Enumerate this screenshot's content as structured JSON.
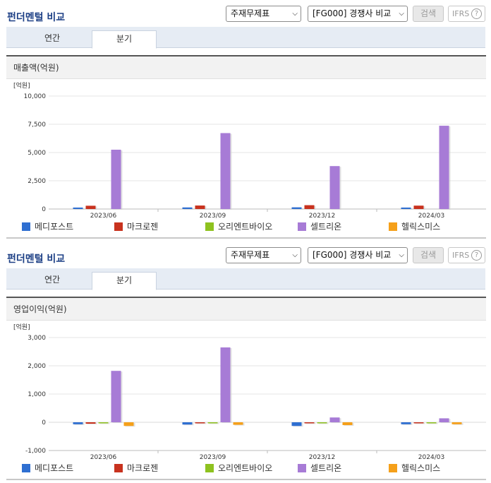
{
  "sections": [
    {
      "title": "펀더멘털 비교",
      "statement_select": "주재무제표",
      "compare_select": "[FG000] 경쟁사 비교",
      "search_label": "검색",
      "ifrs_label": "IFRS",
      "help_glyph": "?",
      "tabs": [
        {
          "label": "연간",
          "active": false
        },
        {
          "label": "분기",
          "active": true
        }
      ]
    },
    {
      "title": "펀더멘털 비교",
      "statement_select": "주재무제표",
      "compare_select": "[FG000] 경쟁사 비교",
      "search_label": "검색",
      "ifrs_label": "IFRS",
      "help_glyph": "?",
      "tabs": [
        {
          "label": "연간",
          "active": false
        },
        {
          "label": "분기",
          "active": true
        }
      ]
    }
  ],
  "legend": [
    {
      "name": "메디포스트",
      "color": "#2f6fd1"
    },
    {
      "name": "마크로젠",
      "color": "#c8321e"
    },
    {
      "name": "오리엔트바이오",
      "color": "#8ec21f"
    },
    {
      "name": "셀트리온",
      "color": "#a77bd6"
    },
    {
      "name": "헬릭스미스",
      "color": "#f5a01a"
    }
  ],
  "chart_data": [
    {
      "type": "bar",
      "title": "매출액(억원)",
      "unit_label": "[억원]",
      "categories": [
        "2023/06",
        "2023/09",
        "2023/12",
        "2024/03"
      ],
      "ylim": [
        0,
        10000
      ],
      "yticks": [
        "0",
        "2,500",
        "5,000",
        "7,500",
        "10,000"
      ],
      "ytick_values": [
        0,
        2500,
        5000,
        7500,
        10000
      ],
      "grid": true,
      "series": [
        {
          "name": "메디포스트",
          "values": [
            130,
            140,
            150,
            130
          ]
        },
        {
          "name": "마크로젠",
          "values": [
            290,
            310,
            340,
            300
          ]
        },
        {
          "name": "오리엔트바이오",
          "values": [
            0,
            0,
            0,
            0
          ]
        },
        {
          "name": "셀트리온",
          "values": [
            5250,
            6720,
            3800,
            7370
          ]
        },
        {
          "name": "헬릭스미스",
          "values": [
            0,
            0,
            0,
            0
          ]
        }
      ]
    },
    {
      "type": "bar",
      "title": "영업이익(억원)",
      "unit_label": "[억원]",
      "categories": [
        "2023/06",
        "2023/09",
        "2023/12",
        "2024/03"
      ],
      "ylim": [
        -1000,
        3000
      ],
      "yticks": [
        "-1,000",
        "0",
        "1,000",
        "2,000",
        "3,000"
      ],
      "ytick_values": [
        -1000,
        0,
        1000,
        2000,
        3000
      ],
      "grid": true,
      "series": [
        {
          "name": "메디포스트",
          "values": [
            -70,
            -80,
            -130,
            -70
          ]
        },
        {
          "name": "마크로젠",
          "values": [
            -50,
            -10,
            -30,
            -10
          ]
        },
        {
          "name": "오리엔트바이오",
          "values": [
            -5,
            -5,
            -5,
            -5
          ]
        },
        {
          "name": "셀트리온",
          "values": [
            1820,
            2650,
            170,
            140
          ]
        },
        {
          "name": "헬릭스미스",
          "values": [
            -130,
            -90,
            -100,
            -70
          ]
        }
      ]
    }
  ]
}
